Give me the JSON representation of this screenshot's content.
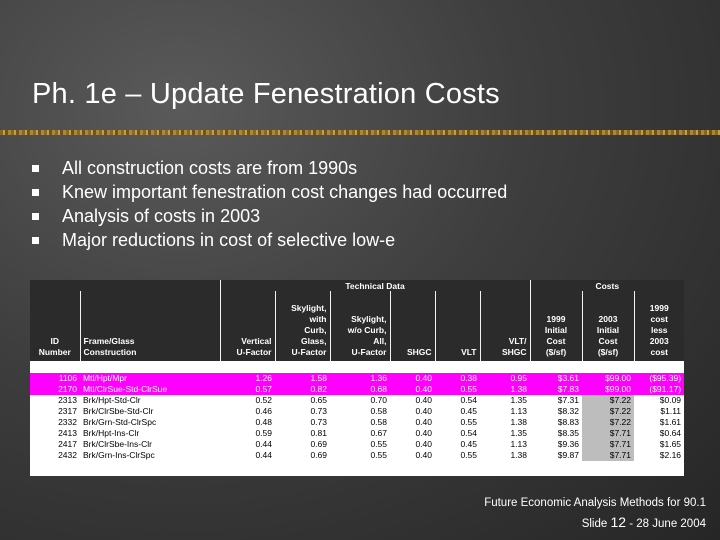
{
  "slide": {
    "title": "Ph. 1e – Update Fenestration Costs",
    "bullets": [
      "All construction costs are from 1990s",
      "Knew important fenestration cost changes had occurred",
      "Analysis of costs in 2003",
      "Major reductions in cost of selective low-e"
    ],
    "footer": {
      "line1": "Future Economic Analysis Methods for 90.1",
      "slide_prefix": "Slide",
      "slide_number": "12",
      "slide_date": "-  28 June 2004"
    }
  },
  "table": {
    "group_headers": {
      "technical": "Technical Data",
      "costs": "Costs"
    },
    "columns": [
      [
        "ID",
        "Number"
      ],
      [
        "Frame/Glass",
        "Construction"
      ],
      [
        "Vertical",
        "U-Factor"
      ],
      [
        "Skylight,",
        "with",
        "Curb,",
        "Glass,",
        "U-Factor"
      ],
      [
        "Skylight,",
        "w/o Curb,",
        "All,",
        "U-Factor"
      ],
      [
        "SHGC"
      ],
      [
        "VLT"
      ],
      [
        "VLT/",
        "SHGC"
      ],
      [
        "1999",
        "Initial",
        "Cost",
        "($/sf)"
      ],
      [
        "2003",
        "Initial",
        "Cost",
        "($/sf)"
      ],
      [
        "1999",
        "cost",
        "less",
        "2003",
        "cost"
      ]
    ],
    "rows": [
      {
        "highlight": true,
        "cells": [
          "1106",
          "Mtl/Hpt/Mpr",
          "1.26",
          "1.58",
          "1.36",
          "0.40",
          "0.38",
          "0.95",
          "$3.61",
          "$99.00",
          "($95.39)"
        ]
      },
      {
        "highlight": true,
        "cells": [
          "2170",
          "Mtl/ClrSue-Std-ClrSue",
          "0.57",
          "0.82",
          "0.68",
          "0.40",
          "0.55",
          "1.38",
          "$7.83",
          "$99.00",
          "($91.17)"
        ]
      },
      {
        "highlight": false,
        "cells": [
          "2313",
          "Brk/Hpt-Std-Clr",
          "0.52",
          "0.65",
          "0.70",
          "0.40",
          "0.54",
          "1.35",
          "$7.31",
          "$7.22",
          "$0.09"
        ]
      },
      {
        "highlight": false,
        "cells": [
          "2317",
          "Brk/ClrSbe-Std-Clr",
          "0.46",
          "0.73",
          "0.58",
          "0.40",
          "0.45",
          "1.13",
          "$8.32",
          "$7.22",
          "$1.11"
        ]
      },
      {
        "highlight": false,
        "cells": [
          "2332",
          "Brk/Grn-Std-ClrSpc",
          "0.48",
          "0.73",
          "0.58",
          "0.40",
          "0.55",
          "1.38",
          "$8.83",
          "$7.22",
          "$1.61"
        ]
      },
      {
        "highlight": false,
        "cells": [
          "2413",
          "Brk/Hpt-Ins-Clr",
          "0.59",
          "0.81",
          "0.67",
          "0.40",
          "0.54",
          "1.35",
          "$8.35",
          "$7.71",
          "$0.64"
        ]
      },
      {
        "highlight": false,
        "cells": [
          "2417",
          "Brk/ClrSbe-Ins-Clr",
          "0.44",
          "0.69",
          "0.55",
          "0.40",
          "0.45",
          "1.13",
          "$9.36",
          "$7.71",
          "$1.65"
        ]
      },
      {
        "highlight": false,
        "cells": [
          "2432",
          "Brk/Grn-Ins-ClrSpc",
          "0.44",
          "0.69",
          "0.55",
          "0.40",
          "0.55",
          "1.38",
          "$9.87",
          "$7.71",
          "$2.16"
        ]
      }
    ]
  }
}
